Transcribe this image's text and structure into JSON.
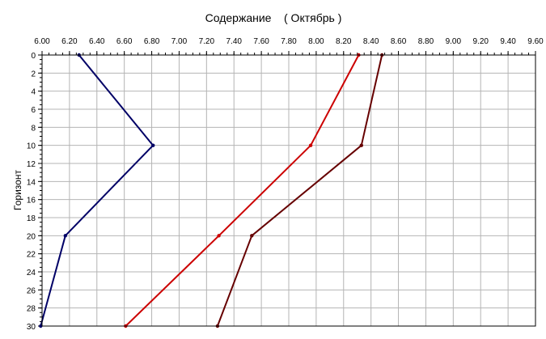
{
  "chart_data": {
    "type": "line",
    "title": "Содержание    ( Октябрь )",
    "xlabel": "",
    "ylabel": "Горизонт",
    "xlim": [
      6.0,
      9.6
    ],
    "ylim": [
      0,
      30
    ],
    "y_inverted": true,
    "x_ticks": [
      "6.00",
      "6.20",
      "6.40",
      "6.60",
      "6.80",
      "7.00",
      "7.20",
      "7.40",
      "7.60",
      "7.80",
      "8.00",
      "8.20",
      "8.40",
      "8.60",
      "8.80",
      "9.00",
      "9.20",
      "9.40",
      "9.60"
    ],
    "y_ticks": [
      "0",
      "2",
      "4",
      "6",
      "8",
      "10",
      "12",
      "14",
      "16",
      "18",
      "20",
      "22",
      "24",
      "26",
      "28",
      "30"
    ],
    "x_axis_position": "top",
    "grid": true,
    "legend": "none",
    "series": [
      {
        "color": "#000066",
        "points": [
          [
            6.27,
            0
          ],
          [
            6.81,
            10
          ],
          [
            6.17,
            20
          ],
          [
            5.99,
            30
          ]
        ]
      },
      {
        "color": "#cc0000",
        "points": [
          [
            8.31,
            0
          ],
          [
            7.96,
            10
          ],
          [
            7.29,
            20
          ],
          [
            6.61,
            30
          ]
        ]
      },
      {
        "color": "#660000",
        "points": [
          [
            8.48,
            0
          ],
          [
            8.33,
            10
          ],
          [
            7.53,
            20
          ],
          [
            7.28,
            30
          ]
        ]
      }
    ]
  }
}
